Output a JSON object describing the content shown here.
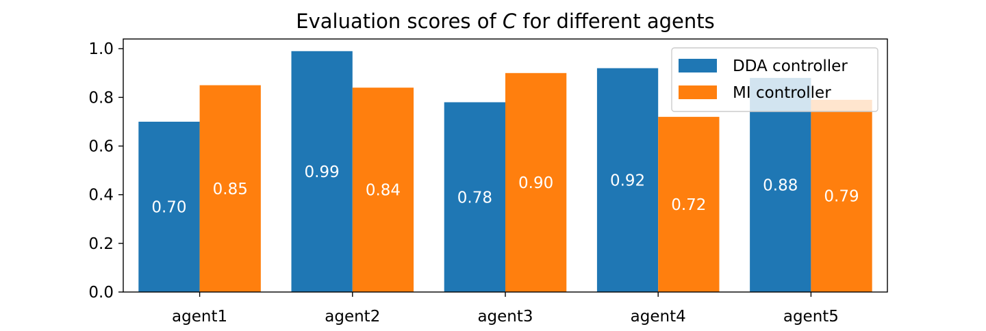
{
  "chart_data": {
    "type": "bar",
    "title_prefix": "Evaluation scores of ",
    "title_symbol": "C",
    "title_suffix": " for different agents",
    "xlabel": "",
    "ylabel": "",
    "categories": [
      "agent1",
      "agent2",
      "agent3",
      "agent4",
      "agent5"
    ],
    "series": [
      {
        "name": "DDA controller",
        "color": "#1f77b4",
        "values": [
          0.7,
          0.99,
          0.78,
          0.92,
          0.88
        ],
        "labels": [
          "0.70",
          "0.99",
          "0.78",
          "0.92",
          "0.88"
        ]
      },
      {
        "name": "MI controller",
        "color": "#ff7f0e",
        "values": [
          0.85,
          0.84,
          0.9,
          0.72,
          0.79
        ],
        "labels": [
          "0.85",
          "0.84",
          "0.90",
          "0.72",
          "0.79"
        ]
      }
    ],
    "ylim": [
      0,
      1.04
    ],
    "yticks": [
      0.0,
      0.2,
      0.4,
      0.6,
      0.8,
      1.0
    ],
    "ytick_labels": [
      "0.0",
      "0.2",
      "0.4",
      "0.6",
      "0.8",
      "1.0"
    ],
    "grid": false,
    "legend_position": "top-right"
  }
}
